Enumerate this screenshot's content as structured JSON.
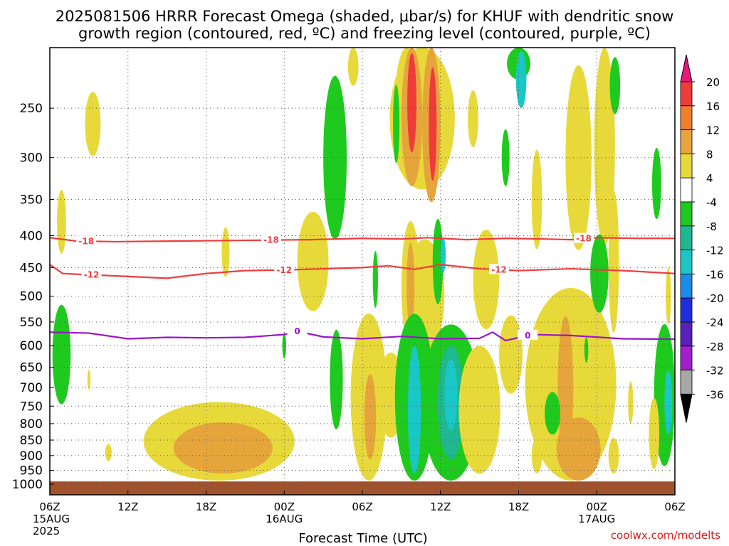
{
  "chart_data": {
    "type": "heatmap",
    "title_lines": [
      "2025081506 HRRR Forecast Omega (shaded, μbar/s) for KHUF with dendritic snow",
      "growth region (contoured, red, ºC) and freezing level (contoured, purple, ºC)"
    ],
    "xlabel": "Forecast Time (UTC)",
    "ylabel": "",
    "x_range_hours": [
      0,
      48
    ],
    "x_ticks": [
      {
        "hour": 0,
        "lines": [
          "06Z",
          "15AUG",
          "2025"
        ]
      },
      {
        "hour": 6,
        "lines": [
          "12Z"
        ]
      },
      {
        "hour": 12,
        "lines": [
          "18Z"
        ]
      },
      {
        "hour": 18,
        "lines": [
          "00Z",
          "16AUG"
        ]
      },
      {
        "hour": 24,
        "lines": [
          "06Z"
        ]
      },
      {
        "hour": 30,
        "lines": [
          "12Z"
        ]
      },
      {
        "hour": 36,
        "lines": [
          "18Z"
        ]
      },
      {
        "hour": 42,
        "lines": [
          "00Z",
          "17AUG"
        ]
      },
      {
        "hour": 48,
        "lines": [
          "06Z"
        ]
      }
    ],
    "y_scale": "log-pressure",
    "y_range_hpa": [
      1040,
      200
    ],
    "y_ticks": [
      250,
      300,
      350,
      400,
      450,
      500,
      550,
      600,
      650,
      700,
      750,
      800,
      850,
      900,
      950,
      1000
    ],
    "grid": true,
    "colorbar": {
      "labels": [
        "20",
        "16",
        "12",
        "8",
        "4",
        "-4",
        "-8",
        "-12",
        "-16",
        "-20",
        "-24",
        "-28",
        "-32",
        "-36"
      ],
      "colors": [
        "#e8157a",
        "#f03b3b",
        "#f07f2a",
        "#e6a53a",
        "#e8d93a",
        "#ffffff",
        "#1fca1f",
        "#1fb890",
        "#19c7c7",
        "#1a8be8",
        "#1f2fe0",
        "#5a1fb8",
        "#a21fd0",
        "#a8a8a8",
        "#000000"
      ]
    },
    "contours": [
      {
        "name": "-18",
        "color": "#f03c3c",
        "label_hours": [
          2.8,
          17,
          41
        ],
        "points": [
          [
            0,
            403
          ],
          [
            2,
            408
          ],
          [
            5,
            409
          ],
          [
            10,
            408
          ],
          [
            15,
            407
          ],
          [
            20,
            406
          ],
          [
            24,
            404
          ],
          [
            27,
            405
          ],
          [
            29,
            403
          ],
          [
            32,
            406
          ],
          [
            35,
            404
          ],
          [
            38,
            405
          ],
          [
            40,
            406
          ],
          [
            42,
            403
          ],
          [
            45,
            404
          ],
          [
            48,
            404
          ]
        ]
      },
      {
        "name": "-12",
        "color": "#f03c3c",
        "label_hours": [
          3.2,
          18,
          34.5
        ],
        "points": [
          [
            0,
            445
          ],
          [
            1,
            460
          ],
          [
            3,
            462
          ],
          [
            6,
            465
          ],
          [
            9,
            468
          ],
          [
            12,
            460
          ],
          [
            15,
            455
          ],
          [
            18,
            454
          ],
          [
            21,
            452
          ],
          [
            24,
            450
          ],
          [
            26,
            447
          ],
          [
            28,
            453
          ],
          [
            30,
            445
          ],
          [
            33,
            452
          ],
          [
            36,
            455
          ],
          [
            40,
            452
          ],
          [
            44,
            455
          ],
          [
            48,
            460
          ]
        ]
      },
      {
        "name": "0",
        "color": "#9a15c8",
        "label_hours": [
          19,
          36.7
        ],
        "points": [
          [
            0,
            571
          ],
          [
            3,
            573
          ],
          [
            6,
            585
          ],
          [
            9,
            582
          ],
          [
            12,
            583
          ],
          [
            15,
            582
          ],
          [
            18,
            576
          ],
          [
            19,
            569
          ],
          [
            21,
            581
          ],
          [
            24,
            585
          ],
          [
            27,
            580
          ],
          [
            30,
            585
          ],
          [
            33,
            584
          ],
          [
            34,
            571
          ],
          [
            35,
            589
          ],
          [
            37,
            576
          ],
          [
            40,
            578
          ],
          [
            44,
            585
          ],
          [
            48,
            586
          ]
        ]
      }
    ],
    "surface_fill": "#a0522d",
    "credit": "coolwx.com/modelts"
  }
}
